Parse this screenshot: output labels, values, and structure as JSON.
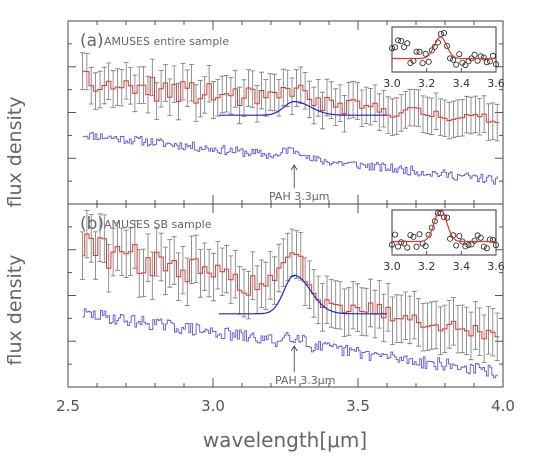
{
  "figure": {
    "xlabel": "wavelength[μm]",
    "ylabel": "flux density",
    "xticks": [
      "2.5",
      "3.0",
      "3.5",
      "4.0"
    ],
    "inset_xticks": [
      "3.0",
      "3.2",
      "3.4",
      "3.6"
    ],
    "colors": {
      "data": "#d83a2c",
      "model": "#2222c8",
      "template": "#5a5ae0",
      "errorbar": "#777777"
    }
  },
  "chart_data": [
    {
      "type": "line",
      "panel_label": "(a)",
      "title": "AMUSES entire sample",
      "annotation": "PAH 3.3μm",
      "xlabel": "wavelength[μm]",
      "ylabel": "flux density",
      "xlim": [
        2.5,
        4.0
      ],
      "ylim": [
        0,
        1
      ],
      "series": [
        {
          "role": "data",
          "x_range": [
            2.55,
            3.98
          ],
          "trend": [
            0.66,
            0.46
          ],
          "noise_start": 0.075,
          "noise_end": 0.025,
          "error": 0.1
        },
        {
          "role": "model",
          "x_range": [
            3.02,
            3.6
          ],
          "base": 0.485,
          "peak_center": 3.28,
          "peak_width": 0.035,
          "peak_height": 0.075
        },
        {
          "role": "template",
          "x_range": [
            2.55,
            3.98
          ],
          "trend": [
            0.38,
            0.13
          ],
          "noise": 0.025
        }
      ],
      "inset": {
        "xlim": [
          3.0,
          3.6
        ],
        "xticks": [
          3.0,
          3.2,
          3.4,
          3.6
        ],
        "peak_center": 3.28,
        "peak_height": 0.48
      }
    },
    {
      "type": "line",
      "panel_label": "(b)",
      "title": "AMUSES SB sample",
      "annotation": "PAH 3.3μm",
      "xlabel": "wavelength[μm]",
      "ylabel": "flux density",
      "xlim": [
        2.5,
        4.0
      ],
      "ylim": [
        0,
        1
      ],
      "series": [
        {
          "role": "data",
          "x_range": [
            2.55,
            3.98
          ],
          "trend": [
            0.76,
            0.28
          ],
          "noise_start": 0.09,
          "noise_end": 0.03,
          "error": 0.13
        },
        {
          "role": "model",
          "x_range": [
            3.02,
            3.6
          ],
          "base": 0.4,
          "peak_center": 3.28,
          "peak_width": 0.035,
          "peak_height": 0.21
        },
        {
          "role": "template",
          "x_range": [
            2.55,
            3.98
          ],
          "trend": [
            0.4,
            0.08
          ],
          "noise": 0.035
        }
      ],
      "inset": {
        "xlim": [
          3.0,
          3.6
        ],
        "xticks": [
          3.0,
          3.2,
          3.4,
          3.6
        ],
        "peak_center": 3.28,
        "peak_height": 0.72
      }
    }
  ]
}
